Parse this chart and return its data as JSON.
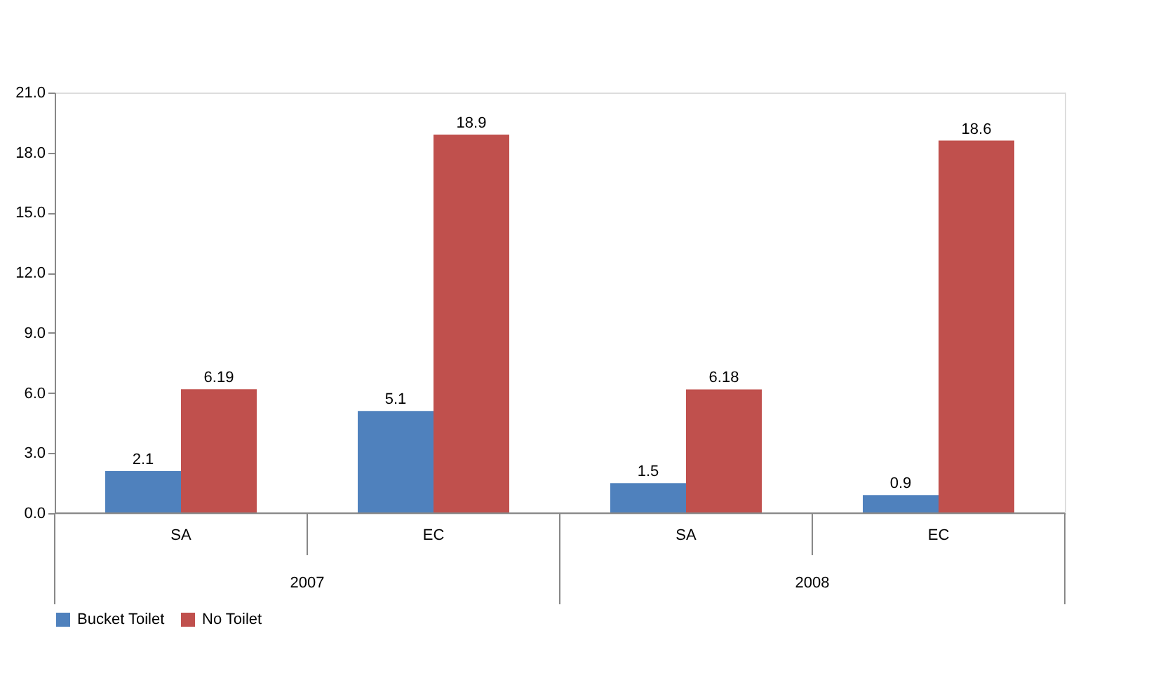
{
  "chart_data": {
    "type": "bar",
    "categories": [
      "SA",
      "EC",
      "SA",
      "EC"
    ],
    "annotations": [
      "2007",
      "2008"
    ],
    "series": [
      {
        "name": "Bucket Toilet",
        "color": "#4f81bd",
        "values": [
          2.1,
          5.1,
          1.5,
          0.9
        ]
      },
      {
        "name": "No Toilet",
        "color": "#c0504d",
        "values": [
          6.19,
          18.9,
          6.18,
          18.6
        ]
      }
    ],
    "ylim": [
      0,
      21
    ],
    "yticks": [
      {
        "value": 0,
        "label": "0.0"
      },
      {
        "value": 3,
        "label": "3.0"
      },
      {
        "value": 6,
        "label": "6.0"
      },
      {
        "value": 9,
        "label": "9.0"
      },
      {
        "value": 12,
        "label": "12.0"
      },
      {
        "value": 15,
        "label": "15.0"
      },
      {
        "value": 18,
        "label": "18.0"
      },
      {
        "value": 21,
        "label": "21.0"
      }
    ],
    "data_labels": true,
    "grid": false,
    "legend": "bottom"
  }
}
